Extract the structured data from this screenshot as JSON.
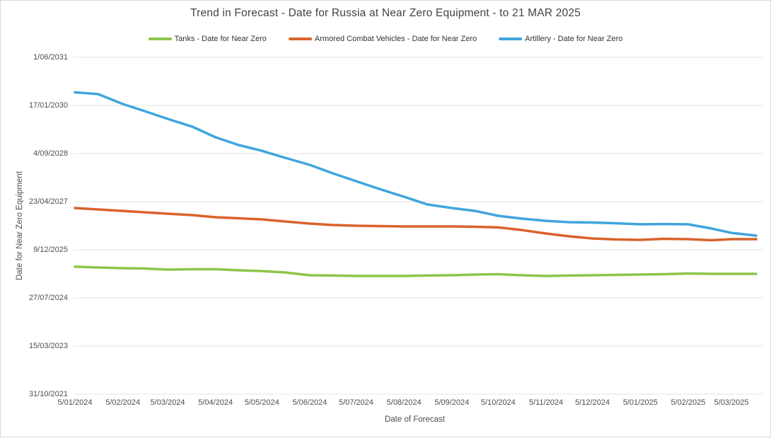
{
  "window": {
    "background": "#FFFFFF",
    "border_color": "#D9D9D9"
  },
  "legend": {
    "items": [
      {
        "label": "Tanks - Date for Near Zero",
        "color": "#8CC54A"
      },
      {
        "label": "Armored Combat Vehicles - Date for Near Zero",
        "color": "#D9622B"
      },
      {
        "label": "Artillery - Date for Near Zero",
        "color": "#3FA5DD"
      }
    ]
  },
  "chart_data": {
    "type": "line",
    "title": "Trend in Forecast - Date for Russia at Near Zero Equipment - to 21 MAR 2025",
    "xlabel": "Date of Forecast",
    "ylabel": "Date for Near Zero Equipment",
    "legend_position": "top",
    "grid": "horizontal-only",
    "x_axis": {
      "description": "forecast publication date, encoded as days since 5/01/2024; data runs weekly to 21/03/2025 (day 441)",
      "range": [
        0,
        448
      ],
      "ticks": [
        {
          "label": "5/01/2024",
          "day": 0
        },
        {
          "label": "5/02/2024",
          "day": 31
        },
        {
          "label": "5/03/2024",
          "day": 60
        },
        {
          "label": "5/04/2024",
          "day": 91
        },
        {
          "label": "5/05/2024",
          "day": 121
        },
        {
          "label": "5/06/2024",
          "day": 152
        },
        {
          "label": "5/07/2024",
          "day": 182
        },
        {
          "label": "5/08/2024",
          "day": 213
        },
        {
          "label": "5/09/2024",
          "day": 244
        },
        {
          "label": "5/10/2024",
          "day": 274
        },
        {
          "label": "5/11/2024",
          "day": 305
        },
        {
          "label": "5/12/2024",
          "day": 335
        },
        {
          "label": "5/01/2025",
          "day": 366
        },
        {
          "label": "5/02/2025",
          "day": 397
        },
        {
          "label": "5/03/2025",
          "day": 425
        }
      ]
    },
    "y_axis": {
      "description": "forecast date at near-zero equipment, encoded as days since 31/10/2021; one gridline per 500 days",
      "range": [
        0,
        3500
      ],
      "ticks": [
        {
          "label": "31/10/2021",
          "value": 0
        },
        {
          "label": "15/03/2023",
          "value": 500
        },
        {
          "label": "27/07/2024",
          "value": 1000
        },
        {
          "label": "9/12/2025",
          "value": 1500
        },
        {
          "label": "23/04/2027",
          "value": 2000
        },
        {
          "label": "4/09/2028",
          "value": 2500
        },
        {
          "label": "17/01/2030",
          "value": 3000
        },
        {
          "label": "1/06/2031",
          "value": 3500
        }
      ]
    },
    "series": [
      {
        "key": "tanks",
        "name": "Tanks - Date for Near Zero",
        "color": "#8CC54A",
        "points": [
          [
            0,
            1324
          ],
          [
            15,
            1316
          ],
          [
            31,
            1309
          ],
          [
            45,
            1305
          ],
          [
            60,
            1294
          ],
          [
            76,
            1298
          ],
          [
            91,
            1298
          ],
          [
            106,
            1287
          ],
          [
            121,
            1279
          ],
          [
            136,
            1265
          ],
          [
            152,
            1235
          ],
          [
            167,
            1232
          ],
          [
            182,
            1228
          ],
          [
            197,
            1228
          ],
          [
            213,
            1228
          ],
          [
            228,
            1232
          ],
          [
            244,
            1235
          ],
          [
            259,
            1243
          ],
          [
            274,
            1246
          ],
          [
            289,
            1235
          ],
          [
            305,
            1228
          ],
          [
            320,
            1232
          ],
          [
            335,
            1235
          ],
          [
            350,
            1239
          ],
          [
            366,
            1243
          ],
          [
            381,
            1246
          ],
          [
            397,
            1254
          ],
          [
            412,
            1250
          ],
          [
            425,
            1250
          ],
          [
            441,
            1250
          ]
        ]
      },
      {
        "key": "armored-combat-vehicles",
        "name": "Armored Combat Vehicles - Date for Near Zero",
        "color": "#D9622B",
        "points": [
          [
            0,
            1934
          ],
          [
            15,
            1919
          ],
          [
            31,
            1904
          ],
          [
            45,
            1890
          ],
          [
            60,
            1875
          ],
          [
            76,
            1860
          ],
          [
            91,
            1838
          ],
          [
            106,
            1827
          ],
          [
            121,
            1816
          ],
          [
            136,
            1794
          ],
          [
            152,
            1772
          ],
          [
            167,
            1757
          ],
          [
            182,
            1750
          ],
          [
            197,
            1746
          ],
          [
            213,
            1743
          ],
          [
            228,
            1743
          ],
          [
            244,
            1743
          ],
          [
            259,
            1739
          ],
          [
            274,
            1732
          ],
          [
            289,
            1706
          ],
          [
            305,
            1669
          ],
          [
            320,
            1640
          ],
          [
            335,
            1618
          ],
          [
            350,
            1607
          ],
          [
            366,
            1603
          ],
          [
            381,
            1614
          ],
          [
            397,
            1610
          ],
          [
            412,
            1599
          ],
          [
            425,
            1610
          ],
          [
            441,
            1610
          ]
        ]
      },
      {
        "key": "artillery",
        "name": "Artillery - Date for Near Zero",
        "color": "#3FA5DD",
        "points": [
          [
            0,
            3136
          ],
          [
            15,
            3118
          ],
          [
            31,
            3015
          ],
          [
            45,
            2941
          ],
          [
            60,
            2860
          ],
          [
            76,
            2779
          ],
          [
            91,
            2669
          ],
          [
            106,
            2588
          ],
          [
            121,
            2529
          ],
          [
            136,
            2456
          ],
          [
            152,
            2382
          ],
          [
            167,
            2294
          ],
          [
            182,
            2213
          ],
          [
            197,
            2132
          ],
          [
            213,
            2051
          ],
          [
            228,
            1971
          ],
          [
            244,
            1934
          ],
          [
            259,
            1904
          ],
          [
            274,
            1853
          ],
          [
            289,
            1824
          ],
          [
            305,
            1801
          ],
          [
            320,
            1787
          ],
          [
            335,
            1783
          ],
          [
            350,
            1776
          ],
          [
            366,
            1765
          ],
          [
            381,
            1768
          ],
          [
            397,
            1765
          ],
          [
            412,
            1721
          ],
          [
            425,
            1676
          ],
          [
            441,
            1647
          ]
        ]
      }
    ]
  }
}
